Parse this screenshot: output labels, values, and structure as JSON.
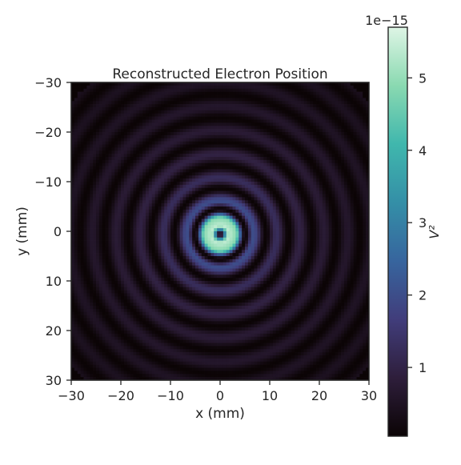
{
  "chart_data": {
    "type": "heatmap",
    "title": "Reconstructed Electron Position",
    "xlabel": "x (mm)",
    "ylabel": "y (mm)",
    "xlim": [
      -30,
      30
    ],
    "ylim": [
      30,
      -30
    ],
    "y_inverted": true,
    "grid": false,
    "xticks": [
      -30,
      -20,
      -10,
      0,
      10,
      20,
      30
    ],
    "yticks": [
      -30,
      -20,
      -10,
      0,
      10,
      20,
      30
    ],
    "xtick_labels": [
      "−30",
      "−20",
      "−10",
      "0",
      "10",
      "20",
      "30"
    ],
    "ytick_labels": [
      "−30",
      "−20",
      "−10",
      "0",
      "10",
      "20",
      "30"
    ],
    "grid_size": 96,
    "field": {
      "description_of_values": "V^2 intensity, radially symmetric rings centered near (0, 0.5) mm",
      "center": [
        0.0,
        0.6
      ],
      "ring_peaks": [
        {
          "r": 1.8,
          "v": 5.4e-15
        },
        {
          "r": 3.2,
          "v": 4.9e-15
        },
        {
          "r": 7.0,
          "v": 1.9e-15
        },
        {
          "r": 11.5,
          "v": 1.25e-15
        },
        {
          "r": 16.2,
          "v": 9.5e-16
        },
        {
          "r": 21.0,
          "v": 7.5e-16
        },
        {
          "r": 25.8,
          "v": 6.2e-16
        },
        {
          "r": 30.6,
          "v": 5.2e-16
        },
        {
          "r": 35.4,
          "v": 4.5e-16
        },
        {
          "r": 40.2,
          "v": 4e-16
        }
      ],
      "min_value": 5e-17
    },
    "colorbar": {
      "label": "V²",
      "scale_label": "1e−15",
      "vmin": 0.05,
      "vmax": 5.7,
      "ticks": [
        1,
        2,
        3,
        4,
        5
      ],
      "tick_labels": [
        "1",
        "2",
        "3",
        "4",
        "5"
      ],
      "colormap": "mako",
      "colormap_stops": [
        "#0b0405",
        "#2e1e3b",
        "#413d7b",
        "#37659e",
        "#348fa7",
        "#40b7ad",
        "#8ad9b1",
        "#def5e5"
      ]
    }
  }
}
